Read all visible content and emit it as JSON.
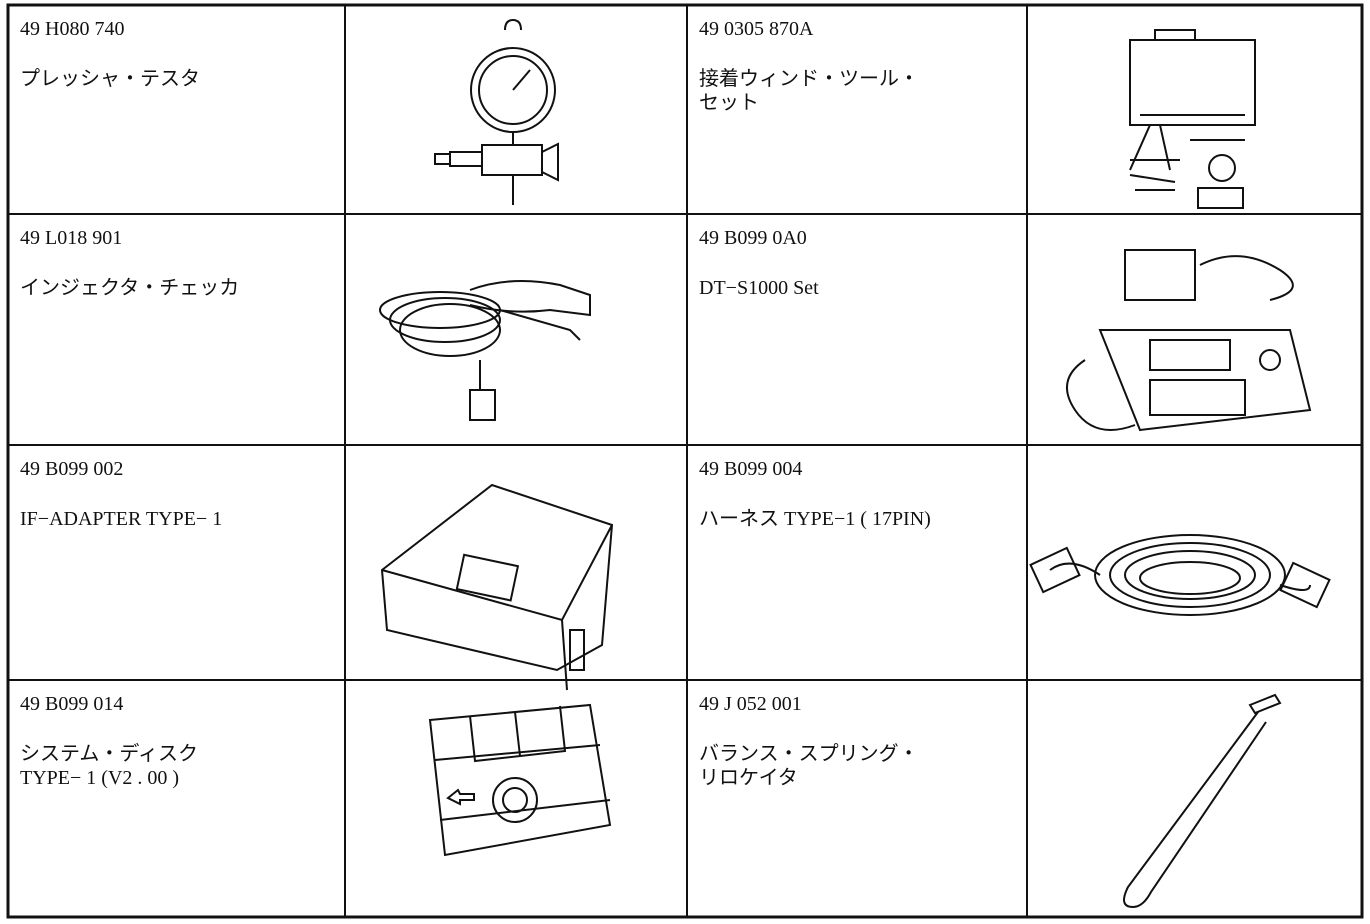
{
  "table": {
    "rows": [
      {
        "items": [
          {
            "part": "49 H080 740",
            "name": [
              "プレッシャ・テスタ"
            ]
          },
          {
            "part": "49 0305 870A",
            "name": [
              "接着ウィンド・ツール・",
              "セット"
            ]
          }
        ]
      },
      {
        "items": [
          {
            "part": "49 L018 901",
            "name": [
              "インジェクタ・チェッカ"
            ]
          },
          {
            "part": "49 B099 0A0",
            "name": [
              "DT−S1000 Set"
            ]
          }
        ]
      },
      {
        "items": [
          {
            "part": "49 B099 002",
            "name": [
              "IF−ADAPTER TYPE− 1"
            ]
          },
          {
            "part": "49 B099 004",
            "name": [
              "ハーネス TYPE−1 ( 17PIN)"
            ]
          }
        ]
      },
      {
        "items": [
          {
            "part": "49 B099 014",
            "name": [
              "システム・ディスク",
              "TYPE− 1 (V2 . 00 )"
            ]
          },
          {
            "part": "49 J 052 001",
            "name": [
              "バランス・スプリング・",
              "リロケイタ"
            ]
          }
        ]
      }
    ]
  }
}
